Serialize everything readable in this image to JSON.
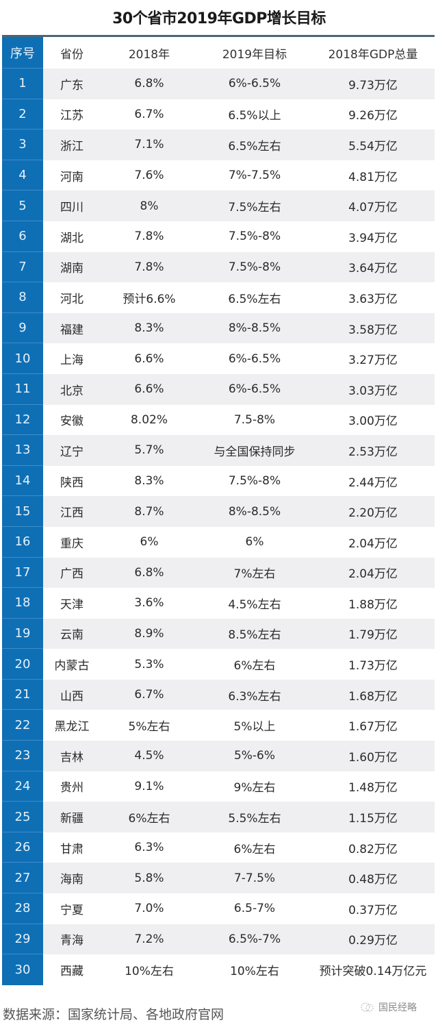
{
  "title": "30个省市2019年GDP增长目标",
  "table": {
    "columns": [
      "序号",
      "省份",
      "2018年",
      "2019年目标",
      "2018年GDP总量"
    ],
    "rows": [
      [
        "1",
        "广东",
        "6.8%",
        "6%-6.5%",
        "9.73万亿"
      ],
      [
        "2",
        "江苏",
        "6.7%",
        "6.5%以上",
        "9.26万亿"
      ],
      [
        "3",
        "浙江",
        "7.1%",
        "6.5%左右",
        "5.54万亿"
      ],
      [
        "4",
        "河南",
        "7.6%",
        "7%-7.5%",
        "4.81万亿"
      ],
      [
        "5",
        "四川",
        "8%",
        "7.5%左右",
        "4.07万亿"
      ],
      [
        "6",
        "湖北",
        "7.8%",
        "7.5%-8%",
        "3.94万亿"
      ],
      [
        "7",
        "湖南",
        "7.8%",
        "7.5%-8%",
        "3.64万亿"
      ],
      [
        "8",
        "河北",
        "预计6.6%",
        "6.5%左右",
        "3.63万亿"
      ],
      [
        "9",
        "福建",
        "8.3%",
        "8%-8.5%",
        "3.58万亿"
      ],
      [
        "10",
        "上海",
        "6.6%",
        "6%-6.5%",
        "3.27万亿"
      ],
      [
        "11",
        "北京",
        "6.6%",
        "6%-6.5%",
        "3.03万亿"
      ],
      [
        "12",
        "安徽",
        "8.02%",
        "7.5-8%",
        "3.00万亿"
      ],
      [
        "13",
        "辽宁",
        "5.7%",
        "与全国保持同步",
        "2.53万亿"
      ],
      [
        "14",
        "陕西",
        "8.3%",
        "7.5%-8%",
        "2.44万亿"
      ],
      [
        "15",
        "江西",
        "8.7%",
        "8%-8.5%",
        "2.20万亿"
      ],
      [
        "16",
        "重庆",
        "6%",
        "6%",
        "2.04万亿"
      ],
      [
        "17",
        "广西",
        "6.8%",
        "7%左右",
        "2.04万亿"
      ],
      [
        "18",
        "天津",
        "3.6%",
        "4.5%左右",
        "1.88万亿"
      ],
      [
        "19",
        "云南",
        "8.9%",
        "8.5%左右",
        "1.79万亿"
      ],
      [
        "20",
        "内蒙古",
        "5.3%",
        "6%左右",
        "1.73万亿"
      ],
      [
        "21",
        "山西",
        "6.7%",
        "6.3%左右",
        "1.68万亿"
      ],
      [
        "22",
        "黑龙江",
        "5%左右",
        "5%以上",
        "1.67万亿"
      ],
      [
        "23",
        "吉林",
        "4.5%",
        "5%-6%",
        "1.60万亿"
      ],
      [
        "24",
        "贵州",
        "9.1%",
        "9%左右",
        "1.48万亿"
      ],
      [
        "25",
        "新疆",
        "6%左右",
        "5.5%左右",
        "1.15万亿"
      ],
      [
        "26",
        "甘肃",
        "6.3%",
        "6%左右",
        "0.82万亿"
      ],
      [
        "27",
        "海南",
        "5.8%",
        "7-7.5%",
        "0.48万亿"
      ],
      [
        "28",
        "宁夏",
        "7.0%",
        "6.5-7%",
        "0.37万亿"
      ],
      [
        "29",
        "青海",
        "7.2%",
        "6.5%-7%",
        "0.29万亿"
      ],
      [
        "30",
        "西藏",
        "10%左右",
        "10%左右",
        "预计突破0.14万亿元"
      ]
    ]
  },
  "footer": {
    "source": "数据来源：国家统计局、各地政府官网",
    "watermark_icon": "wechat-official-account-icon",
    "watermark": "国民经略"
  },
  "colors": {
    "index_column": "#0f6fb5",
    "header_rule": "#4a6478",
    "stripe": "#efeff1"
  }
}
